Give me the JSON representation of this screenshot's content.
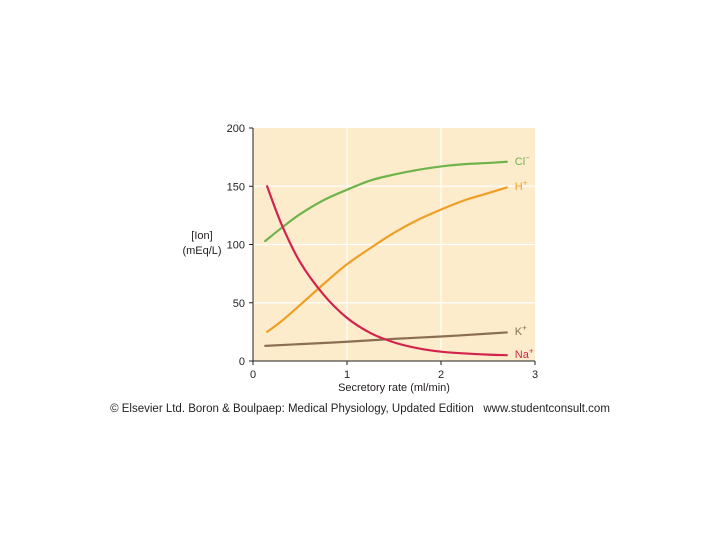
{
  "caption": "© Elsevier Ltd. Boron & Boulpaep: Medical Physiology, Updated Edition   www.studentconsult.com",
  "chart_data": {
    "type": "line",
    "title": "",
    "xlabel": "Secretory rate (ml/min)",
    "ylabel_lines": [
      "[Ion]",
      "(mEq/L)"
    ],
    "xlim": [
      0,
      3
    ],
    "ylim": [
      0,
      200
    ],
    "x_ticks": [
      0,
      1,
      2,
      3
    ],
    "y_ticks": [
      0,
      50,
      100,
      150,
      200
    ],
    "grid": true,
    "legend_position": "right-of-curve-ends",
    "plot_bg": "#fdeccb",
    "grid_color": "#ffffff",
    "axis_color": "#231f20",
    "series": [
      {
        "id": "cl",
        "name": "Cl−",
        "label_base": "Cl",
        "label_sup": "−",
        "color": "#6fb44b",
        "x": [
          0.13,
          0.3,
          0.5,
          0.75,
          1.0,
          1.25,
          1.5,
          1.75,
          2.0,
          2.25,
          2.5,
          2.7
        ],
        "y": [
          103,
          114,
          126,
          138,
          147,
          155,
          160,
          164,
          167,
          169,
          170,
          171
        ]
      },
      {
        "id": "h",
        "name": "H+",
        "label_base": "H",
        "label_sup": "+",
        "color": "#ef9f26",
        "x": [
          0.15,
          0.3,
          0.5,
          0.75,
          1.0,
          1.25,
          1.5,
          1.75,
          2.0,
          2.25,
          2.5,
          2.7
        ],
        "y": [
          25,
          34,
          48,
          66,
          83,
          97,
          110,
          121,
          130,
          138,
          144,
          149
        ]
      },
      {
        "id": "k",
        "name": "K+",
        "label_base": "K",
        "label_sup": "+",
        "color": "#8a6f51",
        "x": [
          0.13,
          0.5,
          1.0,
          1.5,
          2.0,
          2.5,
          2.7
        ],
        "y": [
          13,
          14.5,
          16.5,
          19,
          21,
          23.5,
          24.5
        ]
      },
      {
        "id": "na",
        "name": "Na+",
        "label_base": "Na",
        "label_sup": "+",
        "color": "#d2234e",
        "x": [
          0.15,
          0.3,
          0.5,
          0.75,
          1.0,
          1.25,
          1.5,
          1.75,
          2.0,
          2.25,
          2.5,
          2.7
        ],
        "y": [
          150,
          118,
          85,
          57,
          37,
          24,
          16,
          11,
          8,
          6.5,
          5.5,
          5
        ]
      }
    ]
  }
}
